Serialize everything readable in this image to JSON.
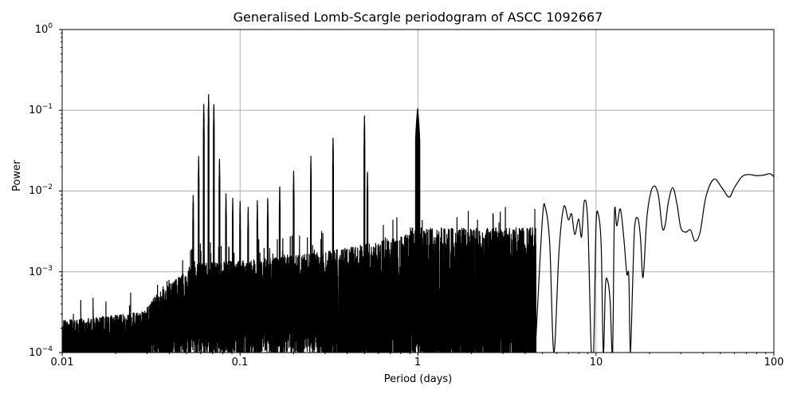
{
  "chart_data": {
    "type": "line",
    "title": "Generalised Lomb-Scargle periodogram of ASCC 1092667",
    "xlabel": "Period (days)",
    "ylabel": "Power",
    "xscale": "log",
    "yscale": "log",
    "xlim": [
      0.01,
      100
    ],
    "ylim": [
      0.0001,
      1
    ],
    "grid": true,
    "legend": null,
    "x_ticks": [
      {
        "value": 0.01,
        "label": "0.01"
      },
      {
        "value": 0.1,
        "label": "0.1"
      },
      {
        "value": 1,
        "label": "1"
      },
      {
        "value": 10,
        "label": "10"
      },
      {
        "value": 100,
        "label": "100"
      }
    ],
    "y_ticks": [
      {
        "value": 1,
        "base": "10",
        "exp": "0"
      },
      {
        "value": 0.1,
        "base": "10",
        "exp": "−1"
      },
      {
        "value": 0.01,
        "base": "10",
        "exp": "−2"
      },
      {
        "value": 0.001,
        "base": "10",
        "exp": "−3"
      },
      {
        "value": 0.0001,
        "base": "10",
        "exp": "−4"
      }
    ],
    "line_color": "#000000",
    "grid_color": "#b0b0b0",
    "notable_peaks": [
      {
        "period": 0.0545,
        "power": 0.0095
      },
      {
        "period": 0.0585,
        "power": 0.027
      },
      {
        "period": 0.0625,
        "power": 0.125
      },
      {
        "period": 0.0665,
        "power": 0.16
      },
      {
        "period": 0.0712,
        "power": 0.125
      },
      {
        "period": 0.0766,
        "power": 0.026
      },
      {
        "period": 0.0833,
        "power": 0.0095
      },
      {
        "period": 0.0909,
        "power": 0.0082
      },
      {
        "period": 0.1,
        "power": 0.0078
      },
      {
        "period": 0.111,
        "power": 0.0065
      },
      {
        "period": 0.125,
        "power": 0.0078
      },
      {
        "period": 0.143,
        "power": 0.0085
      },
      {
        "period": 0.167,
        "power": 0.012
      },
      {
        "period": 0.2,
        "power": 0.018
      },
      {
        "period": 0.25,
        "power": 0.027
      },
      {
        "period": 0.333,
        "power": 0.048
      },
      {
        "period": 0.5,
        "power": 0.088
      },
      {
        "period": 0.52,
        "power": 0.018
      },
      {
        "period": 0.995,
        "power": 0.105
      },
      {
        "period": 5.2,
        "power": 0.0062
      },
      {
        "period": 6.6,
        "power": 0.0064
      },
      {
        "period": 8.6,
        "power": 0.0075
      },
      {
        "period": 12.7,
        "power": 0.0052
      },
      {
        "period": 13.7,
        "power": 0.006
      },
      {
        "period": 17.2,
        "power": 0.0046
      },
      {
        "period": 21.4,
        "power": 0.0115
      },
      {
        "period": 27.0,
        "power": 0.011
      },
      {
        "period": 46.0,
        "power": 0.014
      },
      {
        "period": 72.0,
        "power": 0.016
      },
      {
        "period": 95.0,
        "power": 0.016
      }
    ],
    "smooth_tail": {
      "x": [
        4.6,
        5.0,
        5.2,
        5.5,
        5.8,
        6.2,
        6.6,
        7.0,
        7.3,
        7.6,
        8.0,
        8.3,
        8.6,
        9.0,
        9.4,
        9.7,
        10.0,
        10.3,
        10.7,
        11.0,
        11.3,
        11.6,
        12.0,
        12.4,
        12.7,
        13.1,
        13.7,
        14.3,
        14.9,
        15.3,
        15.6,
        16.1,
        16.5,
        17.2,
        17.8,
        18.4,
        19.3,
        20.3,
        21.4,
        22.5,
        23.6,
        24.5,
        25.5,
        27.0,
        28.5,
        30.0,
        32.0,
        34.0,
        36.0,
        38.5,
        41.5,
        46.0,
        51.0,
        56.0,
        60.0,
        66.0,
        72.0,
        80.0,
        88.0,
        95.0,
        100.0
      ],
      "y": [
        0.00015,
        0.0045,
        0.0062,
        0.0022,
        0.0001,
        0.0018,
        0.0064,
        0.0044,
        0.0052,
        0.0029,
        0.0045,
        0.0027,
        0.0075,
        0.004,
        0.00011,
        0.0001,
        0.0035,
        0.0052,
        0.0021,
        0.0001,
        0.00065,
        0.00079,
        0.00045,
        0.0001,
        0.0052,
        0.0037,
        0.006,
        0.0028,
        0.00095,
        0.00088,
        0.0001,
        0.0008,
        0.0036,
        0.0046,
        0.0026,
        0.00085,
        0.0045,
        0.0095,
        0.0115,
        0.0085,
        0.0035,
        0.0038,
        0.0072,
        0.011,
        0.007,
        0.0035,
        0.0031,
        0.0033,
        0.0024,
        0.0031,
        0.0085,
        0.014,
        0.011,
        0.0084,
        0.011,
        0.015,
        0.016,
        0.0155,
        0.0158,
        0.0164,
        0.015
      ]
    }
  }
}
